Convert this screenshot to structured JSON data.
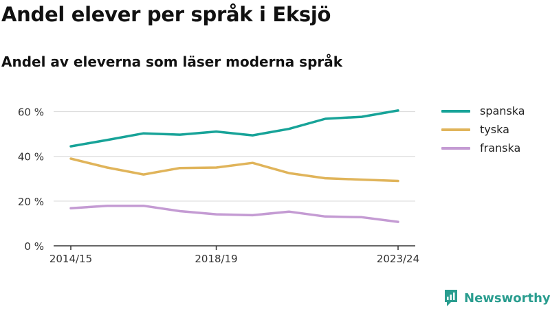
{
  "title": "Andel elever per språk i Eksjö",
  "subtitle": "Andel av eleverna som läser moderna språk",
  "brand": {
    "name": "Newsworthy",
    "icon": "newsworthy-logo-icon",
    "color": "#2a9d8f"
  },
  "chart_data": {
    "type": "line",
    "x": [
      "2014/15",
      "2015/16",
      "2016/17",
      "2017/18",
      "2018/19",
      "2019/20",
      "2020/21",
      "2021/22",
      "2022/23",
      "2023/24"
    ],
    "x_tick_labels": [
      "2014/15",
      "2018/19",
      "2023/24"
    ],
    "y_ticks": [
      0,
      20,
      40,
      60
    ],
    "y_tick_labels": [
      "0 %",
      "20 %",
      "40 %",
      "60 %"
    ],
    "ylim": [
      0,
      70
    ],
    "grid": true,
    "legend_position": "right",
    "series": [
      {
        "name": "spanska",
        "color": "#17a398",
        "values": [
          44.5,
          47.3,
          50.3,
          49.7,
          51.1,
          49.4,
          52.3,
          56.8,
          57.7,
          60.5
        ]
      },
      {
        "name": "tyska",
        "color": "#e0b45a",
        "values": [
          39.0,
          35.0,
          31.9,
          34.8,
          35.0,
          37.1,
          32.5,
          30.2,
          29.6,
          29.0
        ]
      },
      {
        "name": "franska",
        "color": "#c49bd3",
        "values": [
          16.8,
          17.9,
          17.9,
          15.5,
          14.1,
          13.7,
          15.3,
          13.1,
          12.8,
          10.7
        ]
      }
    ]
  }
}
